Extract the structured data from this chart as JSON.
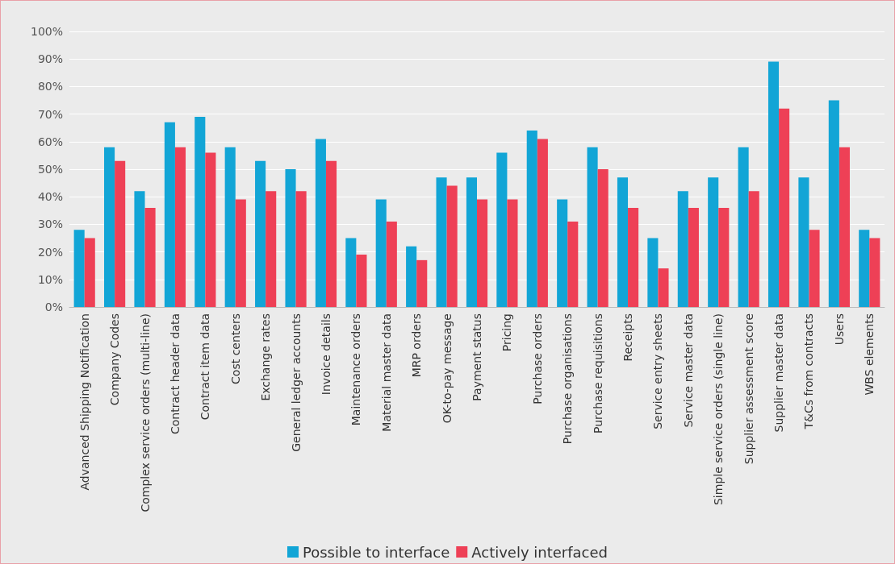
{
  "chart_data": {
    "type": "bar",
    "categories": [
      "Advanced Shipping Notification",
      "Company Codes",
      "Complex service orders (multi-line)",
      "Contract header data",
      "Contract item data",
      "Cost centers",
      "Exchange rates",
      "General ledger accounts",
      "Invoice details",
      "Maintenance orders",
      "Material master data",
      "MRP orders",
      "OK-to-pay message",
      "Payment status",
      "Pricing",
      "Purchase orders",
      "Purchase organisations",
      "Purchase requisitions",
      "Receipts",
      "Service entry sheets",
      "Service master data",
      "Simple service orders (single line)",
      "Supplier assessment score",
      "Supplier master data",
      "T&Cs from contracts",
      "Users",
      "WBS elements"
    ],
    "series": [
      {
        "name": "Possible to interface",
        "color": "#12a5d6",
        "values": [
          28,
          58,
          42,
          67,
          69,
          58,
          53,
          50,
          61,
          25,
          39,
          22,
          47,
          47,
          56,
          64,
          39,
          58,
          47,
          25,
          42,
          47,
          58,
          89,
          47,
          75,
          28
        ]
      },
      {
        "name": "Actively interfaced",
        "color": "#ee4056",
        "values": [
          25,
          53,
          36,
          58,
          56,
          39,
          42,
          42,
          53,
          19,
          31,
          17,
          44,
          39,
          39,
          61,
          31,
          50,
          36,
          14,
          36,
          36,
          42,
          72,
          28,
          58,
          25
        ]
      }
    ],
    "ylim": [
      0,
      100
    ],
    "yticks": [
      {
        "value": 0,
        "label": "0%"
      },
      {
        "value": 10,
        "label": "10%"
      },
      {
        "value": 20,
        "label": "20%"
      },
      {
        "value": 30,
        "label": "30%"
      },
      {
        "value": 40,
        "label": "40%"
      },
      {
        "value": 50,
        "label": "50%"
      },
      {
        "value": 60,
        "label": "60%"
      },
      {
        "value": 70,
        "label": "70%"
      },
      {
        "value": 80,
        "label": "80%"
      },
      {
        "value": 90,
        "label": "90%"
      },
      {
        "value": 100,
        "label": "100%"
      }
    ],
    "grid": "y",
    "legend": "bottom"
  }
}
